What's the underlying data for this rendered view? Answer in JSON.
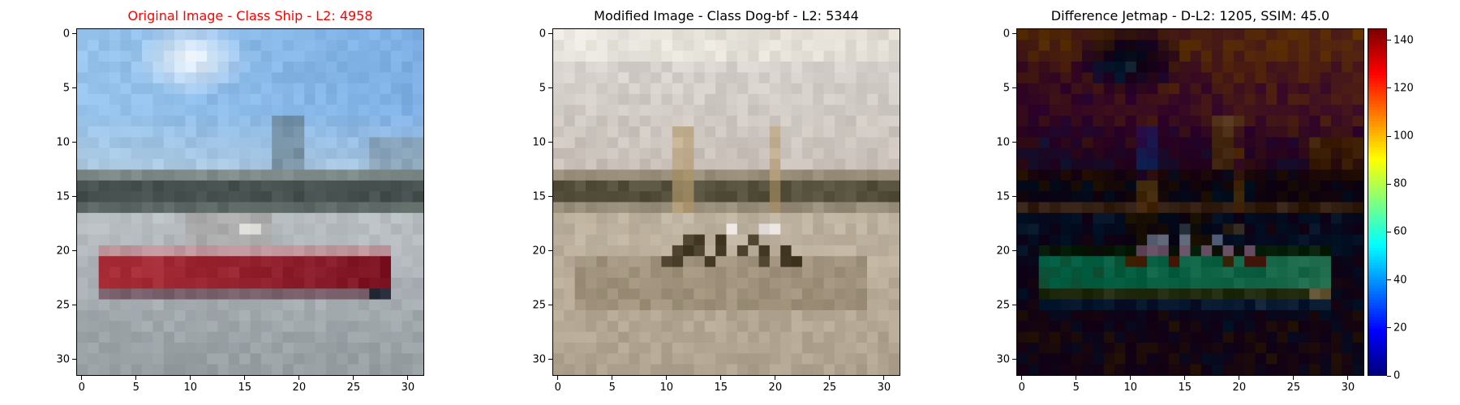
{
  "chart_data": [
    {
      "type": "image",
      "title": "Original Image - Class Ship - L2: 4958",
      "title_color": "#ff0000",
      "xlim": [
        -0.5,
        31.5
      ],
      "ylim": [
        31.5,
        -0.5
      ],
      "x_ticks": [
        0,
        5,
        10,
        15,
        20,
        25,
        30
      ],
      "y_ticks": [
        0,
        5,
        10,
        15,
        20,
        25,
        30
      ],
      "grid_size": [
        32,
        32
      ],
      "content": "ship-photo"
    },
    {
      "type": "image",
      "title": "Modified Image - Class Dog-bf - L2: 5344",
      "title_color": "#000000",
      "xlim": [
        -0.5,
        31.5
      ],
      "ylim": [
        31.5,
        -0.5
      ],
      "x_ticks": [
        0,
        5,
        10,
        15,
        20,
        25,
        30
      ],
      "y_ticks": [
        0,
        5,
        10,
        15,
        20,
        25,
        30
      ],
      "grid_size": [
        32,
        32
      ],
      "content": "perturbed-photo"
    },
    {
      "type": "heatmap",
      "title": "Difference Jetmap - D-L2: 1205, SSIM: 45.0",
      "title_color": "#000000",
      "xlim": [
        -0.5,
        31.5
      ],
      "ylim": [
        31.5,
        -0.5
      ],
      "x_ticks": [
        0,
        5,
        10,
        15,
        20,
        25,
        30
      ],
      "y_ticks": [
        0,
        5,
        10,
        15,
        20,
        25,
        30
      ],
      "grid_size": [
        32,
        32
      ],
      "colormap": "jet",
      "colorbar_range": [
        0,
        145
      ],
      "colorbar_ticks": [
        0,
        20,
        40,
        60,
        80,
        100,
        120,
        140
      ]
    }
  ]
}
